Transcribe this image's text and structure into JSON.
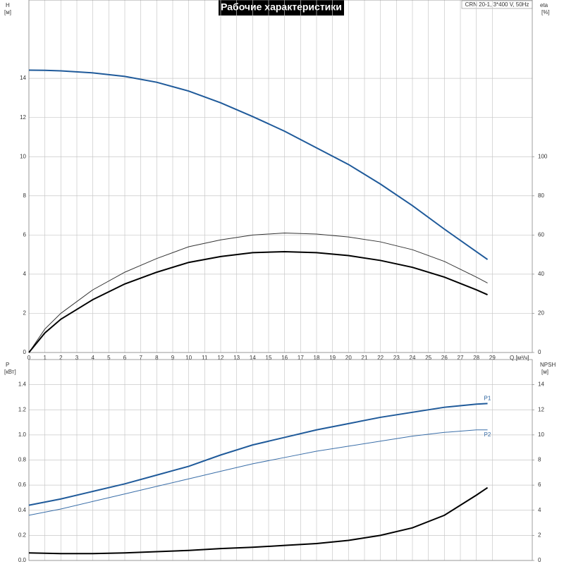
{
  "title": "Рабочие характеристики",
  "model": "CRN 20-1, 3*400 V, 50Hz",
  "chart_data": [
    {
      "type": "line",
      "x_label": "Q [м³/ч]",
      "y_label": "H",
      "y_unit": "[м]",
      "y2_label": "eta",
      "y2_unit": "[%]",
      "x": [
        0,
        1,
        2,
        4,
        6,
        8,
        10,
        12,
        14,
        16,
        18,
        20,
        22,
        24,
        26,
        28,
        28.7
      ],
      "xlim": [
        0,
        31.5
      ],
      "xticks": [
        0,
        1,
        2,
        3,
        4,
        5,
        6,
        7,
        8,
        9,
        10,
        11,
        12,
        13,
        14,
        15,
        16,
        17,
        18,
        19,
        20,
        21,
        22,
        23,
        24,
        25,
        26,
        27,
        28,
        29
      ],
      "ylim": [
        0,
        18
      ],
      "yticks": [
        0,
        2,
        4,
        6,
        8,
        10,
        12,
        14
      ],
      "y2lim": [
        0,
        180
      ],
      "y2ticks": [
        0,
        20,
        40,
        60,
        80,
        100
      ],
      "grid": true,
      "series": [
        {
          "color": "#1f5a9a",
          "values": [
            14.42,
            14.41,
            14.38,
            14.28,
            14.1,
            13.8,
            13.35,
            12.75,
            12.05,
            11.3,
            10.45,
            9.6,
            8.6,
            7.5,
            6.3,
            5.15,
            4.75
          ]
        },
        {
          "color": "#333333",
          "axis": "y2",
          "values": [
            0,
            12,
            20,
            32,
            41,
            48,
            54,
            57.5,
            60,
            61,
            60.5,
            59,
            56.5,
            52.5,
            46.5,
            38.5,
            35.5
          ]
        },
        {
          "color": "#000000",
          "axis": "y2",
          "values": [
            0,
            10,
            17,
            27,
            35,
            41,
            46,
            49,
            51,
            51.5,
            51,
            49.5,
            47,
            43.5,
            38.5,
            32,
            29.5
          ]
        }
      ]
    },
    {
      "type": "line",
      "y_label": "P",
      "y_unit": "[кВт]",
      "y2_label": "NPSH",
      "y2_unit": "[м]",
      "x": [
        0,
        2,
        4,
        6,
        8,
        10,
        12,
        14,
        16,
        18,
        20,
        22,
        24,
        26,
        28,
        28.7
      ],
      "xlim": [
        0,
        31.5
      ],
      "ylim": [
        0,
        1.6
      ],
      "yticks": [
        {
          "value": 0,
          "label": "0.0"
        },
        0.2,
        0.4,
        0.6,
        0.8,
        {
          "value": 1,
          "label": "1.0"
        },
        1.2,
        1.4
      ],
      "y2lim": [
        0,
        16
      ],
      "y2ticks": [
        0,
        2,
        4,
        6,
        8,
        10,
        12,
        14
      ],
      "grid": true,
      "series": [
        {
          "name": "P1",
          "color": "#1f5a9a",
          "values": [
            0.44,
            0.49,
            0.55,
            0.61,
            0.68,
            0.75,
            0.84,
            0.92,
            0.98,
            1.04,
            1.09,
            1.14,
            1.18,
            1.22,
            1.245,
            1.25
          ]
        },
        {
          "name": "P2",
          "color": "#3a6ea8",
          "values": [
            0.36,
            0.41,
            0.47,
            0.53,
            0.59,
            0.65,
            0.71,
            0.77,
            0.82,
            0.87,
            0.91,
            0.95,
            0.99,
            1.02,
            1.04,
            1.04
          ]
        },
        {
          "color": "#000000",
          "axis": "y2",
          "values": [
            0.6,
            0.55,
            0.55,
            0.6,
            0.7,
            0.8,
            0.95,
            1.05,
            1.2,
            1.35,
            1.6,
            2.0,
            2.6,
            3.6,
            5.2,
            5.8
          ]
        }
      ]
    }
  ]
}
